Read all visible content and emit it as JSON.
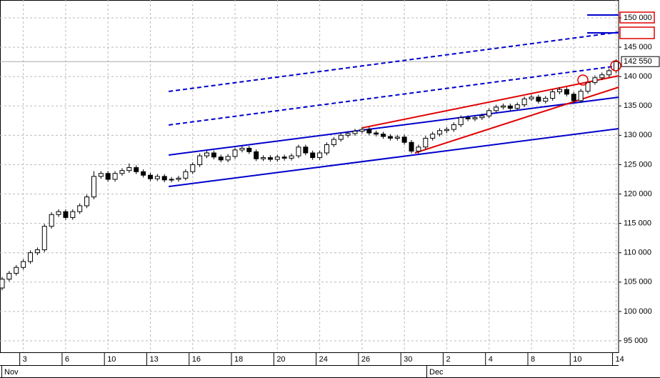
{
  "chart_data": {
    "type": "candlestick",
    "categories": [
      null,
      null,
      null,
      "3",
      null,
      null,
      null,
      null,
      null,
      "6",
      null,
      null,
      null,
      null,
      null,
      "10",
      null,
      null,
      null,
      null,
      null,
      "13",
      null,
      null,
      null,
      null,
      null,
      "16",
      null,
      null,
      null,
      null,
      null,
      "18",
      null,
      null,
      null,
      null,
      null,
      "20",
      null,
      null,
      null,
      null,
      null,
      "24",
      null,
      null,
      null,
      null,
      null,
      "26",
      null,
      null,
      null,
      null,
      null,
      "30",
      null,
      null,
      null,
      null,
      null,
      "2",
      null,
      null,
      null,
      null,
      null,
      "4",
      null,
      null,
      null,
      null,
      null,
      "8",
      null,
      null,
      null,
      null,
      null,
      "10",
      null,
      null,
      null,
      null,
      null,
      "14"
    ],
    "months": [
      "Nov",
      "Dec"
    ],
    "open": [
      104000,
      105500,
      106500,
      107500,
      108500,
      110000,
      110500,
      114500,
      116500,
      117000,
      116000,
      117000,
      118000,
      119500,
      123000,
      123500,
      122500,
      123500,
      124000,
      124500,
      123800,
      123200,
      122600,
      123000,
      122400,
      122500,
      122700,
      123800,
      125000,
      126500,
      127000,
      126300,
      125800,
      126400,
      127500,
      127800,
      127200,
      126000,
      126200,
      125900,
      126300,
      126100,
      126500,
      128000,
      127000,
      126200,
      127000,
      128400,
      129300,
      130000,
      130300,
      130700,
      131000,
      130400,
      130200,
      129800,
      129500,
      129700,
      128800,
      127300,
      128000,
      129500,
      130200,
      130800,
      131000,
      131800,
      133000,
      132800,
      133000,
      133300,
      134200,
      134800,
      135000,
      134600,
      135200,
      136200,
      136500,
      135800,
      136300,
      137400,
      137800,
      137000,
      135900,
      137500,
      139000,
      139800,
      140300,
      141000
    ],
    "high": [
      105900,
      106900,
      107900,
      108900,
      110400,
      110900,
      114900,
      116900,
      117400,
      117400,
      117400,
      118400,
      119900,
      123900,
      123900,
      123900,
      123900,
      124400,
      125200,
      124900,
      124200,
      123600,
      123400,
      123400,
      122900,
      123100,
      124200,
      125400,
      126900,
      127400,
      127400,
      126700,
      126800,
      127900,
      128200,
      128200,
      127600,
      126600,
      126600,
      126700,
      126700,
      126900,
      128400,
      128400,
      127400,
      127400,
      128800,
      129700,
      130400,
      130700,
      131100,
      131400,
      131400,
      130800,
      130600,
      130200,
      130100,
      130100,
      129200,
      128400,
      129900,
      130600,
      131200,
      131400,
      132200,
      133400,
      133400,
      133400,
      133700,
      134600,
      135200,
      135400,
      135400,
      135600,
      136600,
      136900,
      136900,
      136700,
      137800,
      138200,
      138200,
      137400,
      137900,
      139400,
      140200,
      140700,
      141400,
      142950
    ],
    "low": [
      103600,
      105100,
      106100,
      107100,
      108100,
      109600,
      110100,
      114100,
      116100,
      115600,
      115600,
      116600,
      117600,
      119100,
      122600,
      122100,
      122100,
      123100,
      123600,
      123400,
      122800,
      122200,
      122200,
      122000,
      122000,
      122100,
      122300,
      123400,
      124600,
      126100,
      125900,
      125400,
      125400,
      126000,
      127100,
      126800,
      125600,
      125600,
      125500,
      125500,
      125700,
      125700,
      126100,
      126600,
      125800,
      125800,
      126600,
      128000,
      128900,
      129600,
      129900,
      130300,
      130000,
      129800,
      129400,
      129100,
      129100,
      128400,
      126900,
      126900,
      127600,
      129100,
      129800,
      130400,
      130600,
      131400,
      132400,
      132400,
      132600,
      132900,
      133800,
      134400,
      134200,
      134200,
      134800,
      135800,
      135400,
      135400,
      135900,
      137000,
      136600,
      135500,
      135500,
      137100,
      138600,
      139400,
      139900,
      140600
    ],
    "close": [
      105500,
      106500,
      107500,
      108500,
      110000,
      110500,
      114500,
      116500,
      117000,
      116000,
      117000,
      118000,
      119500,
      123000,
      123500,
      122500,
      123500,
      124000,
      124500,
      123800,
      123200,
      122600,
      123000,
      122400,
      122500,
      122700,
      123800,
      125000,
      126500,
      127000,
      126300,
      125800,
      126400,
      127500,
      127800,
      127200,
      126000,
      126200,
      125900,
      126300,
      126100,
      126500,
      128000,
      127000,
      126200,
      127000,
      128400,
      129300,
      130000,
      130300,
      130700,
      131000,
      130400,
      130200,
      129800,
      129500,
      129700,
      128800,
      127300,
      128000,
      129500,
      130200,
      130800,
      131000,
      131800,
      133000,
      132800,
      133000,
      133300,
      134200,
      134800,
      135000,
      134600,
      135200,
      136200,
      136500,
      135800,
      136300,
      137400,
      137800,
      137000,
      135900,
      137500,
      139000,
      139800,
      140300,
      141000,
      142550
    ],
    "up_color": "#ffffff",
    "down_color": "#000000",
    "ylim": [
      93050,
      153040
    ],
    "yticks": [
      {
        "value": 95000,
        "label": "95 000"
      },
      {
        "value": 100000,
        "label": "100 000"
      },
      {
        "value": 105000,
        "label": "105 000"
      },
      {
        "value": 110000,
        "label": "110 000"
      },
      {
        "value": 115000,
        "label": "115 000"
      },
      {
        "value": 120000,
        "label": "120 000"
      },
      {
        "value": 125000,
        "label": "125 000"
      },
      {
        "value": 130000,
        "label": "130 000"
      },
      {
        "value": 135000,
        "label": "135 000"
      },
      {
        "value": 140000,
        "label": "140 000"
      },
      {
        "value": 145000,
        "label": "145 000"
      },
      {
        "value": 150000,
        "label": "150 000"
      }
    ],
    "last_price": {
      "value": 142550,
      "label": "142 550"
    },
    "grid": true,
    "trendlines": [
      {
        "x0": 23.6,
        "v0": 121280,
        "x1": 87.4,
        "v1": 131140,
        "color": "#0000cc",
        "style": "solid"
      },
      {
        "x0": 23.6,
        "v0": 126640,
        "x1": 87.4,
        "v1": 136490,
        "color": "#0000cc",
        "style": "solid"
      },
      {
        "x0": 23.6,
        "v0": 131750,
        "x1": 87.4,
        "v1": 141850,
        "color": "#0000cc",
        "style": "dashed"
      },
      {
        "x0": 23.6,
        "v0": 137470,
        "x1": 87.4,
        "v1": 147570,
        "color": "#0000cc",
        "style": "dashed"
      },
      {
        "x0": 51.0,
        "v0": 131260,
        "x1": 87.4,
        "v1": 140140,
        "color": "#e00000",
        "style": "solid"
      },
      {
        "x0": 58.5,
        "v0": 127000,
        "x1": 87.4,
        "v1": 138200,
        "color": "#e00000",
        "style": "solid"
      },
      {
        "x0": 82.9,
        "v0": 150490,
        "x1": 87.4,
        "v1": 150490,
        "color": "#0000cc",
        "style": "solid"
      },
      {
        "x0": 82.9,
        "v0": 147450,
        "x1": 87.4,
        "v1": 147450,
        "color": "#0000cc",
        "style": "solid"
      }
    ]
  }
}
